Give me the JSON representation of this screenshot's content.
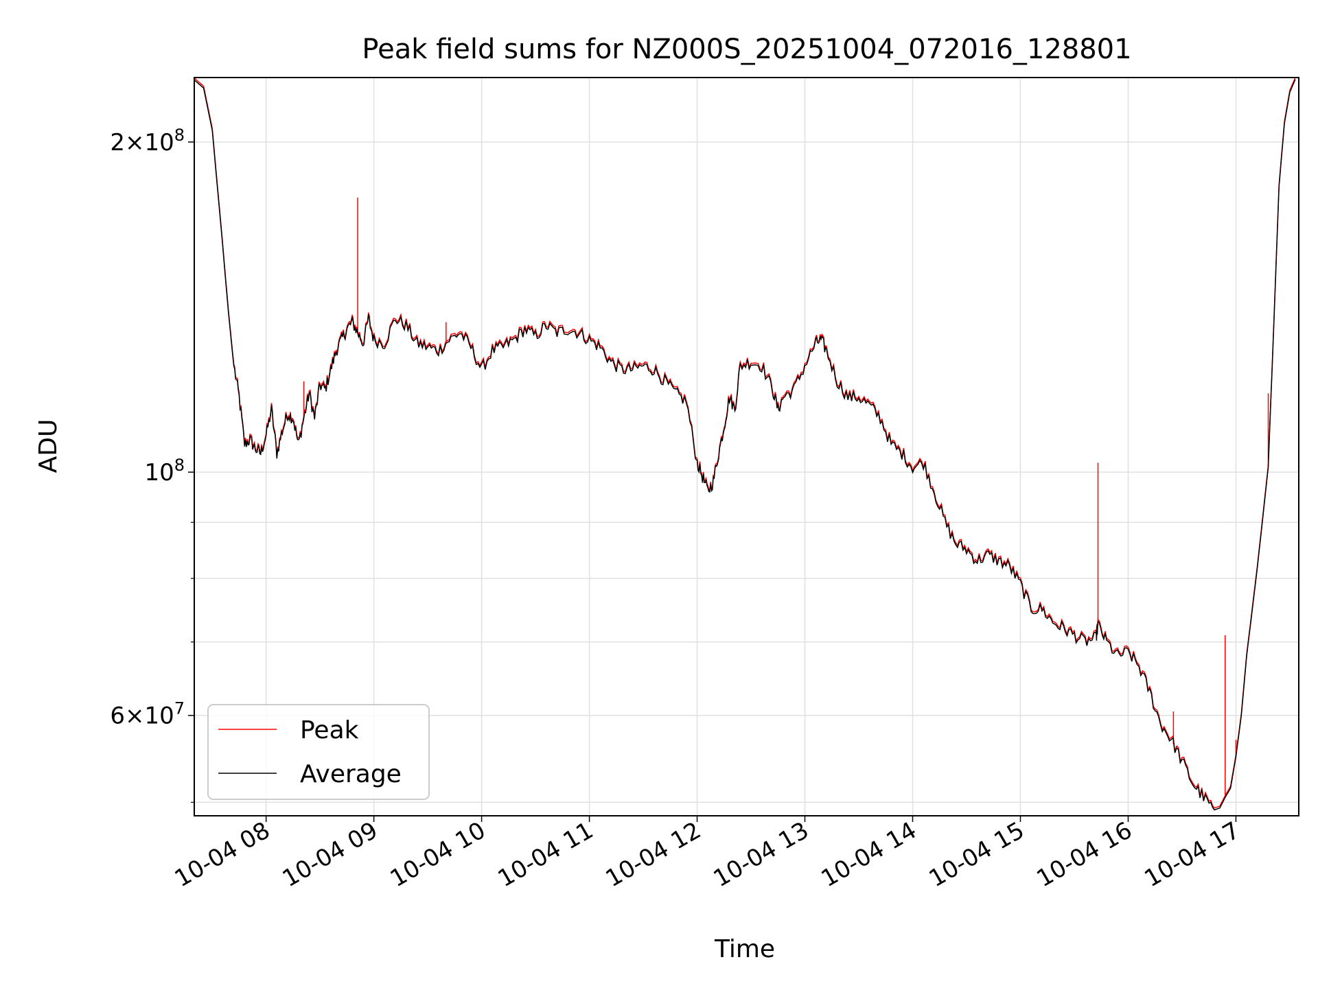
{
  "chart_data": {
    "type": "line",
    "title": "Peak field sums for NZ000S_20251004_072016_128801",
    "xlabel": "Time",
    "ylabel": "ADU",
    "yscale": "log",
    "xlim": [
      "10-04 07:20",
      "10-04 17:35"
    ],
    "ylim": [
      48600000,
      229000000
    ],
    "x_ticks": [
      "10-04 08",
      "10-04 09",
      "10-04 10",
      "10-04 11",
      "10-04 12",
      "10-04 13",
      "10-04 14",
      "10-04 15",
      "10-04 16",
      "10-04 17"
    ],
    "x_tick_hours": [
      8,
      9,
      10,
      11,
      12,
      13,
      14,
      15,
      16,
      17
    ],
    "y_ticks": [
      {
        "value": 200000000,
        "mant": "2",
        "exp": "8"
      },
      {
        "value": 100000000,
        "mant": "",
        "exp": "8"
      },
      {
        "value": 60000000,
        "mant": "6",
        "exp": "7"
      }
    ],
    "y_minor_ticks": [
      50000000,
      70000000,
      80000000,
      90000000
    ],
    "grid": true,
    "legend_position": "lower left",
    "colors": {
      "peak": "#ff0000",
      "average": "#000000",
      "grid": "#e0e0e0"
    },
    "series": [
      {
        "name": "Peak",
        "key": "peak"
      },
      {
        "name": "Average",
        "key": "average"
      }
    ],
    "x_hours": [
      7.33,
      7.42,
      7.5,
      7.58,
      7.65,
      7.7,
      7.75,
      7.8,
      7.85,
      7.9,
      7.95,
      8.0,
      8.05,
      8.1,
      8.15,
      8.2,
      8.25,
      8.3,
      8.35,
      8.4,
      8.45,
      8.5,
      8.55,
      8.6,
      8.65,
      8.7,
      8.75,
      8.8,
      8.85,
      8.9,
      8.95,
      9.0,
      9.1,
      9.2,
      9.3,
      9.4,
      9.5,
      9.6,
      9.7,
      9.8,
      9.9,
      10.0,
      10.1,
      10.2,
      10.3,
      10.4,
      10.5,
      10.6,
      10.7,
      10.8,
      10.9,
      11.0,
      11.1,
      11.2,
      11.3,
      11.4,
      11.5,
      11.6,
      11.7,
      11.8,
      11.9,
      12.0,
      12.05,
      12.1,
      12.15,
      12.2,
      12.25,
      12.3,
      12.35,
      12.4,
      12.5,
      12.6,
      12.7,
      12.75,
      12.8,
      12.9,
      13.0,
      13.1,
      13.15,
      13.2,
      13.3,
      13.4,
      13.5,
      13.6,
      13.7,
      13.8,
      13.9,
      14.0,
      14.1,
      14.2,
      14.3,
      14.4,
      14.5,
      14.6,
      14.7,
      14.8,
      14.9,
      15.0,
      15.1,
      15.2,
      15.3,
      15.4,
      15.5,
      15.6,
      15.7,
      15.72,
      15.8,
      15.9,
      16.0,
      16.1,
      16.2,
      16.3,
      16.4,
      16.5,
      16.6,
      16.7,
      16.8,
      16.85,
      16.9,
      16.95,
      17.0,
      17.05,
      17.1,
      17.2,
      17.3,
      17.35,
      17.4,
      17.45,
      17.5,
      17.55
    ],
    "average_values": [
      228000000,
      224000000,
      205000000,
      168000000,
      140000000,
      125000000,
      117000000,
      106000000,
      107000000,
      105000000,
      104000000,
      108000000,
      114000000,
      104000000,
      109000000,
      113000000,
      112000000,
      106000000,
      112000000,
      118000000,
      112000000,
      120000000,
      119000000,
      124000000,
      129000000,
      132000000,
      135000000,
      137000000,
      134000000,
      131000000,
      138000000,
      132000000,
      131000000,
      138000000,
      136000000,
      131000000,
      130000000,
      129000000,
      132000000,
      134000000,
      130000000,
      124000000,
      129000000,
      130000000,
      132000000,
      135000000,
      133000000,
      136000000,
      134000000,
      135000000,
      134000000,
      132000000,
      130000000,
      126000000,
      124000000,
      124000000,
      125000000,
      124000000,
      121000000,
      118000000,
      116000000,
      102000000,
      99000000,
      96000000,
      98000000,
      104000000,
      110000000,
      117000000,
      114000000,
      125000000,
      126000000,
      125000000,
      119000000,
      114000000,
      117000000,
      119000000,
      125000000,
      131000000,
      132000000,
      129000000,
      121000000,
      117000000,
      117000000,
      115000000,
      112000000,
      106000000,
      104000000,
      101000000,
      102000000,
      96000000,
      90000000,
      86000000,
      85000000,
      83000000,
      84000000,
      83000000,
      82000000,
      79000000,
      75000000,
      75000000,
      73000000,
      72000000,
      71000000,
      70000000,
      70500000,
      72500000,
      70000000,
      68000000,
      68500000,
      66500000,
      63000000,
      59000000,
      57000000,
      54500000,
      52000000,
      50500000,
      49200000,
      49400000,
      50500000,
      51500000,
      55000000,
      60000000,
      68000000,
      82000000,
      101000000,
      135000000,
      182000000,
      208000000,
      222000000,
      228000000
    ],
    "peak_spikes": [
      {
        "hour": 8.85,
        "value": 178000000
      },
      {
        "hour": 9.67,
        "value": 137000000
      },
      {
        "hour": 8.35,
        "value": 121000000
      },
      {
        "hour": 7.85,
        "value": 108000000
      },
      {
        "hour": 15.72,
        "value": 102000000
      },
      {
        "hour": 16.9,
        "value": 71000000
      },
      {
        "hour": 16.42,
        "value": 60500000
      },
      {
        "hour": 17.3,
        "value": 118000000
      },
      {
        "hour": 17.0,
        "value": 57000000
      }
    ]
  }
}
